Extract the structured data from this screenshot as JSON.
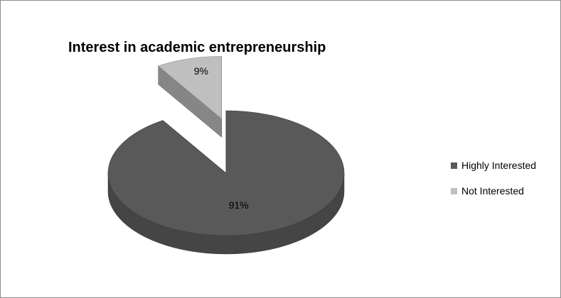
{
  "chart_data": {
    "type": "pie",
    "style": "3d-exploded",
    "title": "Interest in academic entrepreneurship",
    "categories": [
      "Highly Interested",
      "Not Interested"
    ],
    "values": [
      91,
      9
    ],
    "data_labels": [
      "91%",
      "9%"
    ],
    "legend_position": "right",
    "colors": {
      "Highly Interested": "#595959",
      "Not Interested": "#bfbfbf"
    }
  }
}
